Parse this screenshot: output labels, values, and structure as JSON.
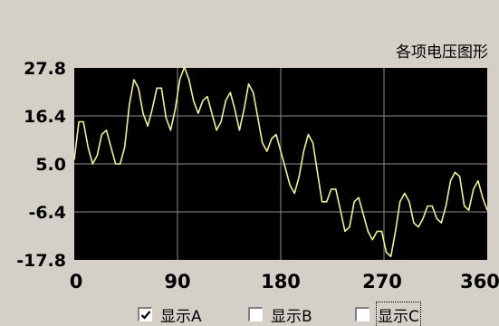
{
  "chart_data": {
    "type": "line",
    "title": "各项电压图形",
    "xlim": [
      0,
      360
    ],
    "ylim": [
      -17.8,
      27.8
    ],
    "x_ticks": [
      "0",
      "90",
      "180",
      "270",
      "360"
    ],
    "y_ticks": [
      "27.8",
      "16.4",
      "5.0",
      "-6.4",
      "-17.8"
    ],
    "grid": true,
    "background": "#000000",
    "series": [
      {
        "color": "#f2f28a",
        "points": [
          [
            0,
            6
          ],
          [
            4,
            15
          ],
          [
            8,
            15
          ],
          [
            12,
            9
          ],
          [
            16,
            5
          ],
          [
            20,
            7
          ],
          [
            24,
            12
          ],
          [
            28,
            13
          ],
          [
            32,
            9
          ],
          [
            36,
            5
          ],
          [
            40,
            5
          ],
          [
            44,
            9
          ],
          [
            48,
            19
          ],
          [
            52,
            25
          ],
          [
            56,
            23
          ],
          [
            60,
            17
          ],
          [
            64,
            14
          ],
          [
            68,
            18
          ],
          [
            72,
            23
          ],
          [
            76,
            23
          ],
          [
            80,
            16
          ],
          [
            84,
            13
          ],
          [
            88,
            18
          ],
          [
            92,
            25
          ],
          [
            96,
            28
          ],
          [
            100,
            25
          ],
          [
            104,
            20
          ],
          [
            108,
            17
          ],
          [
            112,
            20
          ],
          [
            116,
            21
          ],
          [
            120,
            17
          ],
          [
            124,
            13
          ],
          [
            128,
            15
          ],
          [
            132,
            20
          ],
          [
            136,
            22
          ],
          [
            140,
            18
          ],
          [
            144,
            13
          ],
          [
            148,
            18
          ],
          [
            152,
            24
          ],
          [
            156,
            22
          ],
          [
            160,
            16
          ],
          [
            164,
            10
          ],
          [
            168,
            8
          ],
          [
            172,
            11
          ],
          [
            176,
            12
          ],
          [
            180,
            8
          ],
          [
            184,
            4
          ],
          [
            188,
            0
          ],
          [
            192,
            -2
          ],
          [
            196,
            2
          ],
          [
            200,
            8
          ],
          [
            204,
            12
          ],
          [
            208,
            10
          ],
          [
            212,
            3
          ],
          [
            216,
            -4
          ],
          [
            220,
            -4
          ],
          [
            224,
            -1
          ],
          [
            228,
            -1
          ],
          [
            232,
            -6
          ],
          [
            236,
            -11
          ],
          [
            240,
            -10
          ],
          [
            244,
            -4
          ],
          [
            248,
            -3
          ],
          [
            252,
            -7
          ],
          [
            256,
            -11
          ],
          [
            260,
            -13
          ],
          [
            264,
            -11
          ],
          [
            268,
            -11
          ],
          [
            272,
            -16
          ],
          [
            276,
            -17
          ],
          [
            280,
            -11
          ],
          [
            284,
            -4
          ],
          [
            288,
            -2
          ],
          [
            292,
            -4
          ],
          [
            296,
            -9
          ],
          [
            300,
            -10
          ],
          [
            304,
            -8
          ],
          [
            308,
            -5
          ],
          [
            312,
            -5
          ],
          [
            316,
            -8
          ],
          [
            320,
            -9
          ],
          [
            324,
            -5
          ],
          [
            328,
            1
          ],
          [
            332,
            3
          ],
          [
            336,
            2
          ],
          [
            340,
            -5
          ],
          [
            344,
            -6
          ],
          [
            348,
            -1
          ],
          [
            352,
            1
          ],
          [
            356,
            -3
          ],
          [
            360,
            -6
          ]
        ]
      }
    ]
  },
  "colors": {
    "window_bg": "#d4d0c8",
    "plot_bg": "#000000",
    "grid": "#8c8c8c",
    "line": "#f2f28a"
  },
  "checkboxes": [
    {
      "id": "a",
      "label": "显示A",
      "checked": true,
      "focused": false
    },
    {
      "id": "b",
      "label": "显示B",
      "checked": false,
      "focused": false
    },
    {
      "id": "c",
      "label": "显示C",
      "checked": false,
      "focused": true
    }
  ]
}
